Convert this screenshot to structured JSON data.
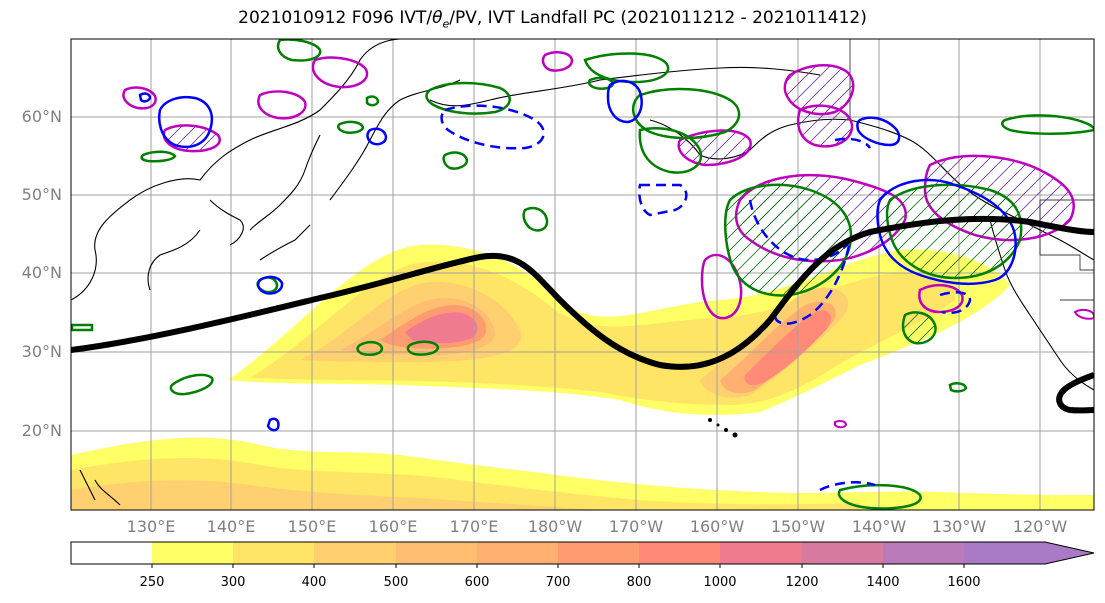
{
  "title": {
    "prefix": "2021010912 F096 IVT/",
    "theta": "θ",
    "theta_sub": "e",
    "suffix": "/PV, IVT Landfall PC (2021011212 - 2021011412)"
  },
  "lat_labels": [
    "60°N",
    "50°N",
    "40°N",
    "30°N",
    "20°N"
  ],
  "lon_labels": [
    "130°E",
    "140°E",
    "150°E",
    "160°E",
    "170°E",
    "180°W",
    "170°W",
    "160°W",
    "150°W",
    "140°W",
    "130°W",
    "120°W"
  ],
  "colorbar": {
    "levels": [
      "250",
      "300",
      "400",
      "500",
      "600",
      "700",
      "800",
      "1000",
      "1200",
      "1400",
      "1600"
    ],
    "colors": [
      "#ffffff",
      "#ffff66",
      "#ffe566",
      "#ffd070",
      "#ffbe70",
      "#ffb070",
      "#ff9b70",
      "#ff8a78",
      "#f07a90",
      "#d77aa0",
      "#b87ab8",
      "#a97ac6"
    ]
  },
  "legend_colors": {
    "jet_contour": "#000000",
    "theta_e_positive": "#008000",
    "theta_e_negative": "#0000ff",
    "pv": "#c000c0"
  }
}
